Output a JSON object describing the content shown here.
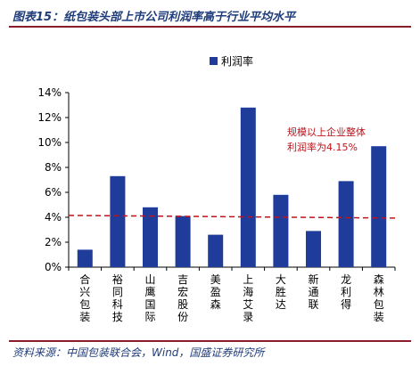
{
  "header": {
    "title": "图表15：纸包装头部上市公司利润率高于行业平均水平"
  },
  "footer": {
    "source": "资料来源：中国包装联合会，Wind，国盛证券研究所"
  },
  "chart_data": {
    "type": "bar",
    "categories": [
      "合兴包装",
      "裕同科技",
      "山鹰国际",
      "吉宏股份",
      "美盈森",
      "上海艾录",
      "大胜达",
      "新通联",
      "龙利得",
      "森林包装"
    ],
    "series": [
      {
        "name": "利润率",
        "values": [
          1.4,
          7.3,
          4.8,
          4.1,
          2.6,
          12.8,
          5.8,
          2.9,
          6.9,
          9.7
        ]
      }
    ],
    "ylim": [
      0,
      14
    ],
    "yticks": [
      0,
      2,
      4,
      6,
      8,
      10,
      12,
      14
    ],
    "ytick_labels": [
      "0%",
      "2%",
      "4%",
      "6%",
      "8%",
      "10%",
      "12%",
      "14%"
    ],
    "reference_line": {
      "value": 4.15
    },
    "annotation": {
      "lines": [
        "规模以上企业整体",
        "利润率为4.15%"
      ]
    },
    "legend": "top",
    "grid": false,
    "colors": {
      "bar": "#1f3c9b",
      "reference": "#c0121b"
    }
  }
}
